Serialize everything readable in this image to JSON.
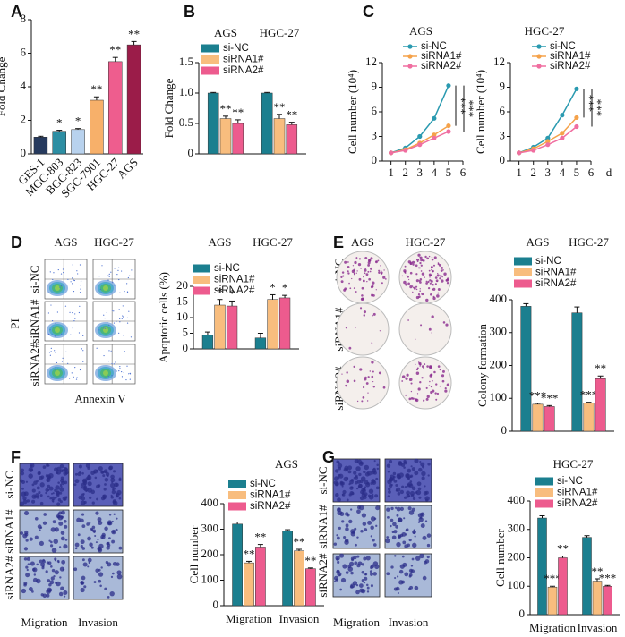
{
  "chart_data": [
    {
      "type": "bar",
      "y_label": "Fold Change",
      "categories": [
        "GES-1",
        "MGC-803",
        "BGC-823",
        "SGC-7901",
        "HGC-27",
        "AGS"
      ],
      "values": [
        1,
        1.35,
        1.45,
        3.2,
        5.5,
        6.5
      ],
      "errors": [
        0.05,
        0.06,
        0.06,
        0.2,
        0.25,
        0.2
      ],
      "annotations": [
        null,
        "*",
        "*",
        "**",
        "**",
        "**"
      ],
      "colors": [
        "#263a5e",
        "#2d8ea3",
        "#b8d2ee",
        "#f7b06a",
        "#ee5d8e",
        "#9b1c49"
      ],
      "ylim": [
        0,
        8
      ],
      "yticks": [
        0,
        2,
        4,
        6,
        8
      ]
    },
    {
      "type": "grouped_bar",
      "y_label": "Fold Change",
      "categories": [
        "AGS",
        "HGC-27"
      ],
      "category_position": "top",
      "legend": "top-left",
      "series": [
        {
          "name": "si-NC",
          "color": "#1b7f8f",
          "values": [
            1.0,
            1.0
          ],
          "errors": [
            0.01,
            0.01
          ],
          "annotations": [
            null,
            null
          ]
        },
        {
          "name": "siRNA1#",
          "color": "#f8bd7e",
          "values": [
            0.58,
            0.58
          ],
          "errors": [
            0.04,
            0.07
          ],
          "annotations": [
            "**",
            "**"
          ]
        },
        {
          "name": "siRNA2#",
          "color": "#ed5b8e",
          "values": [
            0.5,
            0.48
          ],
          "errors": [
            0.06,
            0.04
          ],
          "annotations": [
            "**",
            "**"
          ]
        }
      ],
      "ylim": [
        0,
        1.5
      ],
      "yticks": [
        0,
        0.5,
        {
          "value": 1,
          "label": "1.0"
        },
        1.5
      ]
    },
    {
      "type": "line",
      "title": "AGS",
      "y_label": "Cell number (10⁴)",
      "legend": "top-left",
      "annotations": [
        "***",
        "***"
      ],
      "x": [
        1,
        2,
        3,
        4,
        5
      ],
      "series": [
        {
          "name": "si-NC",
          "color": "#2a9ab0",
          "values": [
            1,
            1.6,
            3,
            5.2,
            9.2
          ]
        },
        {
          "name": "siRNA1#",
          "color": "#f5a24a",
          "values": [
            1,
            1.4,
            2.2,
            3.2,
            4.3
          ]
        },
        {
          "name": "siRNA2#",
          "color": "#f06ea0",
          "values": [
            1,
            1.3,
            2,
            2.8,
            3.6
          ]
        }
      ],
      "xlim": [
        0.4,
        6
      ],
      "xticks": [
        1,
        2,
        3,
        4,
        5,
        6
      ],
      "ylim": [
        0,
        12
      ],
      "yticks": [
        0,
        3,
        6,
        9,
        12
      ]
    },
    {
      "type": "line",
      "title": "HGC-27",
      "y_label": "Cell number (10⁴)",
      "x_label": "d",
      "legend": "top-left",
      "annotations": [
        "***",
        "***"
      ],
      "x": [
        1,
        2,
        3,
        4,
        5
      ],
      "series": [
        {
          "name": "si-NC",
          "color": "#2a9ab0",
          "values": [
            1,
            1.7,
            2.8,
            5.6,
            8.8
          ]
        },
        {
          "name": "siRNA1#",
          "color": "#f5a24a",
          "values": [
            1,
            1.5,
            2.4,
            3.4,
            5.3
          ]
        },
        {
          "name": "siRNA2#",
          "color": "#f06ea0",
          "values": [
            1,
            1.3,
            2,
            2.8,
            4.2
          ]
        }
      ],
      "xlim": [
        0.4,
        6
      ],
      "xticks": [
        1,
        2,
        3,
        4,
        5,
        6
      ],
      "ylim": [
        0,
        12
      ],
      "yticks": [
        0,
        3,
        6,
        9,
        12
      ]
    },
    {
      "type": "grouped_bar",
      "y_label": "Apoptotic cells (%)",
      "categories": [
        "AGS",
        "HGC-27"
      ],
      "category_position": "top",
      "legend": "top-left",
      "series": [
        {
          "name": "si-NC",
          "color": "#1b7f8f",
          "values": [
            4.5,
            3.5
          ],
          "errors": [
            0.9,
            1.5
          ],
          "annotations": [
            null,
            null
          ]
        },
        {
          "name": "siRNA1#",
          "color": "#f8bd7e",
          "values": [
            14,
            15.8
          ],
          "errors": [
            1.8,
            1.5
          ],
          "annotations": [
            "*",
            "*"
          ]
        },
        {
          "name": "siRNA2#",
          "color": "#ed5b8e",
          "values": [
            13.7,
            16.3
          ],
          "errors": [
            1.6,
            0.8
          ],
          "annotations": [
            "*",
            "*"
          ]
        }
      ],
      "ylim": [
        0,
        20
      ],
      "yticks": [
        0,
        5,
        10,
        15,
        20
      ]
    },
    {
      "type": "grouped_bar",
      "y_label": "Colony formation",
      "categories": [
        "AGS",
        "HGC-27"
      ],
      "category_position": "top",
      "legend": "top-left",
      "series": [
        {
          "name": "si-NC",
          "color": "#1b7f8f",
          "values": [
            380,
            360
          ],
          "errors": [
            8,
            18
          ],
          "annotations": [
            null,
            null
          ]
        },
        {
          "name": "siRNA1#",
          "color": "#f8bd7e",
          "values": [
            82,
            85
          ],
          "errors": [
            3,
            3
          ],
          "annotations": [
            "***",
            "***"
          ]
        },
        {
          "name": "siRNA2#",
          "color": "#ed5b8e",
          "values": [
            75,
            160
          ],
          "errors": [
            3,
            8
          ],
          "annotations": [
            "***",
            "**"
          ]
        }
      ],
      "ylim": [
        0,
        400
      ],
      "yticks": [
        0,
        100,
        200,
        300,
        400
      ]
    },
    {
      "type": "grouped_bar",
      "title": "AGS",
      "y_label": "Cell number",
      "categories": [
        "Migration",
        "Invasion"
      ],
      "category_position": "bottom",
      "legend": "top-left",
      "series": [
        {
          "name": "si-NC",
          "color": "#1b7f8f",
          "values": [
            320,
            293
          ],
          "errors": [
            8,
            5
          ],
          "annotations": [
            null,
            null
          ]
        },
        {
          "name": "siRNA1#",
          "color": "#f8bd7e",
          "values": [
            168,
            215
          ],
          "errors": [
            6,
            6
          ],
          "annotations": [
            "**",
            "**"
          ]
        },
        {
          "name": "siRNA2#",
          "color": "#ed5b8e",
          "values": [
            230,
            145
          ],
          "errors": [
            10,
            3
          ],
          "annotations": [
            "**",
            "**"
          ]
        }
      ],
      "ylim": [
        0,
        400
      ],
      "yticks": [
        0,
        100,
        200,
        300,
        400
      ]
    },
    {
      "type": "grouped_bar",
      "title": "HGC-27",
      "y_label": "Cell number",
      "categories": [
        "Migration",
        "Invasion"
      ],
      "category_position": "bottom",
      "legend": "top-left",
      "series": [
        {
          "name": "si-NC",
          "color": "#1b7f8f",
          "values": [
            340,
            272
          ],
          "errors": [
            8,
            6
          ],
          "annotations": [
            null,
            null
          ]
        },
        {
          "name": "siRNA1#",
          "color": "#f8bd7e",
          "values": [
            97,
            118
          ],
          "errors": [
            3,
            8
          ],
          "annotations": [
            "***",
            "**"
          ]
        },
        {
          "name": "siRNA2#",
          "color": "#ed5b8e",
          "values": [
            200,
            100
          ],
          "errors": [
            6,
            3
          ],
          "annotations": [
            "**",
            "***"
          ]
        }
      ],
      "ylim": [
        0,
        400
      ],
      "yticks": [
        0,
        100,
        200,
        300,
        400
      ]
    }
  ],
  "figure": {
    "panel_letters": [
      "A",
      "B",
      "C",
      "D",
      "E",
      "F",
      "G"
    ],
    "flow_images": {
      "columns": [
        "AGS",
        "HGC-27"
      ],
      "rows": [
        "si-NC",
        "siRNA1#",
        "siRNA2#"
      ],
      "y_label": "PI",
      "x_label": "Annexin V"
    },
    "colony_images": {
      "columns": [
        "AGS",
        "HGC-27"
      ],
      "rows": [
        "si-NC",
        "siRNA1#",
        "siRNA2#"
      ]
    },
    "transwell_images": [
      {
        "columns": [
          "Migration",
          "Invasion"
        ],
        "rows": [
          "si-NC",
          "siRNA1#",
          "siRNA2#"
        ]
      },
      {
        "columns": [
          "Migration",
          "Invasion"
        ],
        "rows": [
          "si-NC",
          "siRNA1#",
          "siRNA2#"
        ]
      }
    ]
  }
}
